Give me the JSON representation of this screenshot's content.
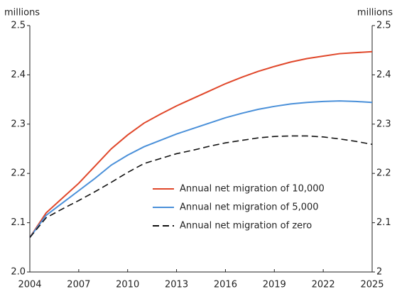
{
  "chart_data": {
    "type": "line",
    "ylabel": "millions",
    "y2label": "millions",
    "x": [
      2004,
      2005,
      2006,
      2007,
      2008,
      2009,
      2010,
      2011,
      2012,
      2013,
      2014,
      2015,
      2016,
      2017,
      2018,
      2019,
      2020,
      2021,
      2022,
      2023,
      2024,
      2025
    ],
    "xlim": [
      2004,
      2025
    ],
    "xticks": [
      2004,
      2007,
      2010,
      2013,
      2016,
      2019,
      2022,
      2025
    ],
    "ylim": [
      2,
      2.5
    ],
    "yticks": [
      {
        "value": 2,
        "label": "2.0"
      },
      2.1,
      2.2,
      2.3,
      2.4,
      2.5
    ],
    "y2lim": [
      2,
      2.5
    ],
    "y2ticks": [
      2,
      2.1,
      2.2,
      2.3,
      2.4,
      2.5
    ],
    "grid": false,
    "legend": "lower right",
    "series": [
      {
        "name": "Annual net migration of 10,000",
        "color": "#e0472a",
        "dash": "solid",
        "values": [
          2.07,
          2.12,
          2.15,
          2.18,
          2.215,
          2.25,
          2.278,
          2.302,
          2.32,
          2.337,
          2.352,
          2.367,
          2.382,
          2.395,
          2.407,
          2.417,
          2.426,
          2.433,
          2.438,
          2.443,
          2.445,
          2.447
        ]
      },
      {
        "name": "Annual net migration of 5,000",
        "color": "#4a90d9",
        "dash": "solid",
        "values": [
          2.07,
          2.115,
          2.14,
          2.165,
          2.19,
          2.217,
          2.237,
          2.254,
          2.267,
          2.28,
          2.291,
          2.302,
          2.313,
          2.322,
          2.33,
          2.336,
          2.341,
          2.344,
          2.346,
          2.347,
          2.346,
          2.344
        ]
      },
      {
        "name": "Annual net migration of zero",
        "color": "#111111",
        "dash": "dashed",
        "values": [
          2.07,
          2.11,
          2.128,
          2.145,
          2.163,
          2.182,
          2.202,
          2.22,
          2.23,
          2.24,
          2.247,
          2.255,
          2.262,
          2.267,
          2.272,
          2.275,
          2.276,
          2.276,
          2.274,
          2.27,
          2.265,
          2.259
        ]
      }
    ]
  }
}
